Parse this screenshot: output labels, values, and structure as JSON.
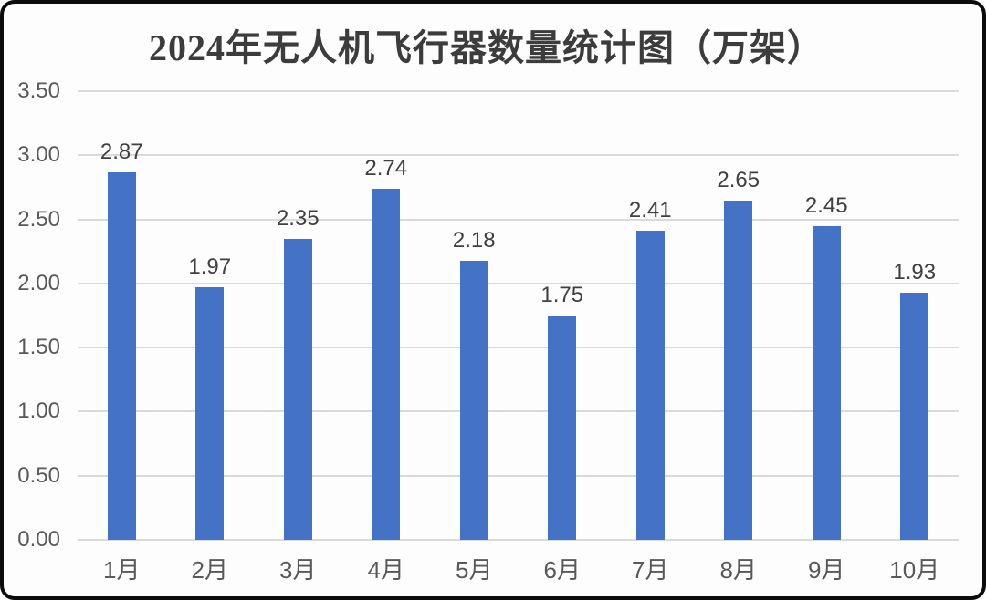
{
  "chart_data": {
    "type": "bar",
    "title": "2024年无人机飞行器数量统计图（万架）",
    "categories": [
      "1月",
      "2月",
      "3月",
      "4月",
      "5月",
      "6月",
      "7月",
      "8月",
      "9月",
      "10月"
    ],
    "values": [
      2.87,
      1.97,
      2.35,
      2.74,
      2.18,
      1.75,
      2.41,
      2.65,
      2.45,
      1.93
    ],
    "data_labels": [
      "2.87",
      "1.97",
      "2.35",
      "2.74",
      "2.18",
      "1.75",
      "2.41",
      "2.65",
      "2.45",
      "1.93"
    ],
    "y_ticks": [
      "0.00",
      "0.50",
      "1.00",
      "1.50",
      "2.00",
      "2.50",
      "3.00",
      "3.50"
    ],
    "ylim": [
      0,
      3.5
    ],
    "xlabel": "",
    "ylabel": "",
    "grid": true,
    "legend": false,
    "colors": {
      "bar": "#4472C4",
      "gridline": "#DADADA",
      "axis_labels": "#595959",
      "data_labels": "#404040",
      "title": "#3C3C3C",
      "background": "#FDFDFD",
      "frame_border": "#0B0B0B"
    }
  }
}
